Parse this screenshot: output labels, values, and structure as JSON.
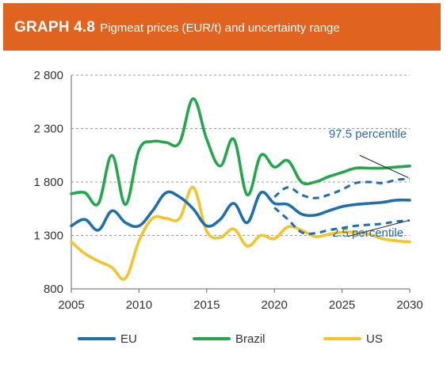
{
  "header": {
    "graph_number": "GRAPH 4.8",
    "title": "Pigmeat prices (EUR/t) and uncertainty range"
  },
  "colors": {
    "header_bg": "#e0631f",
    "eu": "#1f6fb0",
    "brazil": "#22a84a",
    "us": "#f3c42c",
    "uncertainty": "#1f6fb0",
    "annotation_text": "#2b6aa8",
    "grid": "#999999"
  },
  "chart_data": {
    "type": "line",
    "title": "Pigmeat prices (EUR/t) and uncertainty range",
    "xlim": [
      2005,
      2030
    ],
    "ylim": [
      800,
      2800
    ],
    "x_ticks": [
      "2005",
      "2010",
      "2015",
      "2020",
      "2025",
      "2030"
    ],
    "y_ticks": [
      "800",
      "1 300",
      "1 800",
      "2 300",
      "2 800"
    ],
    "grid": "horizontal dashed",
    "legend_position": "bottom",
    "series": [
      {
        "name": "EU",
        "key": "eu",
        "x": [
          2005,
          2006,
          2007,
          2008,
          2009,
          2010,
          2011,
          2012,
          2013,
          2014,
          2015,
          2016,
          2017,
          2018,
          2019,
          2020,
          2021,
          2022,
          2023,
          2024,
          2025,
          2026,
          2027,
          2028,
          2029,
          2030
        ],
        "y": [
          1390,
          1450,
          1350,
          1530,
          1420,
          1390,
          1530,
          1700,
          1660,
          1550,
          1390,
          1450,
          1600,
          1420,
          1700,
          1600,
          1590,
          1500,
          1490,
          1530,
          1570,
          1590,
          1600,
          1610,
          1630,
          1630
        ]
      },
      {
        "name": "Brazil",
        "key": "brazil",
        "x": [
          2005,
          2006,
          2007,
          2008,
          2009,
          2010,
          2011,
          2012,
          2013,
          2014,
          2015,
          2016,
          2017,
          2018,
          2019,
          2020,
          2021,
          2022,
          2023,
          2024,
          2025,
          2026,
          2027,
          2028,
          2029,
          2030
        ],
        "y": [
          1690,
          1700,
          1600,
          2050,
          1590,
          2100,
          2180,
          2170,
          2170,
          2580,
          2200,
          1950,
          2200,
          1680,
          2050,
          1940,
          2000,
          1800,
          1800,
          1850,
          1890,
          1930,
          1930,
          1930,
          1940,
          1950
        ]
      },
      {
        "name": "US",
        "key": "us",
        "x": [
          2005,
          2006,
          2007,
          2008,
          2009,
          2010,
          2011,
          2012,
          2013,
          2014,
          2015,
          2016,
          2017,
          2018,
          2019,
          2020,
          2021,
          2022,
          2023,
          2024,
          2025,
          2026,
          2027,
          2028,
          2029,
          2030
        ],
        "y": [
          1240,
          1130,
          1060,
          1000,
          900,
          1250,
          1460,
          1460,
          1460,
          1750,
          1340,
          1280,
          1360,
          1200,
          1300,
          1270,
          1380,
          1350,
          1290,
          1310,
          1330,
          1330,
          1310,
          1270,
          1250,
          1240
        ]
      },
      {
        "name": "97.5 percentile",
        "key": "p975",
        "style": "dashed",
        "x": [
          2020,
          2021,
          2022,
          2023,
          2024,
          2025,
          2026,
          2027,
          2028,
          2029,
          2030
        ],
        "y": [
          1660,
          1750,
          1680,
          1650,
          1680,
          1730,
          1790,
          1800,
          1790,
          1820,
          1830
        ]
      },
      {
        "name": "2.5 percentile",
        "key": "p025",
        "style": "dashed",
        "x": [
          2020,
          2021,
          2022,
          2023,
          2024,
          2025,
          2026,
          2027,
          2028,
          2029,
          2030
        ],
        "y": [
          1560,
          1450,
          1330,
          1320,
          1350,
          1370,
          1390,
          1400,
          1410,
          1430,
          1440
        ]
      }
    ],
    "annotations": [
      {
        "text": "97.5 percentile",
        "target_key": "p975",
        "label_at": [
          2026.9,
          2215
        ],
        "line_from": [
          2026.3,
          2050
        ],
        "line_to": [
          2029.9,
          1840
        ]
      },
      {
        "text": "2.5 percentile",
        "target_key": "p025",
        "label_at": [
          2026.9,
          1290
        ],
        "line_from": [
          2025.4,
          1290
        ],
        "line_to": [
          2029.9,
          1440
        ]
      }
    ]
  },
  "legend": [
    {
      "label": "EU",
      "color_key": "eu"
    },
    {
      "label": "Brazil",
      "color_key": "brazil"
    },
    {
      "label": "US",
      "color_key": "us"
    }
  ]
}
